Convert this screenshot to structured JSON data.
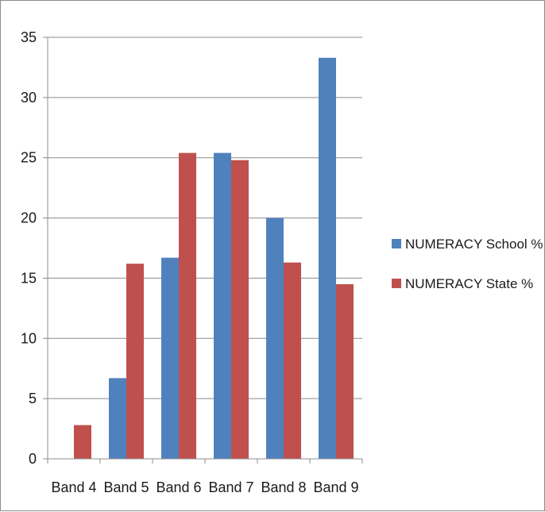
{
  "chart_data": {
    "type": "bar",
    "categories": [
      "Band 4",
      "Band 5",
      "Band 6",
      "Band 7",
      "Band 8",
      "Band 9"
    ],
    "series": [
      {
        "name": "NUMERACY School %",
        "color": "#4F81BD",
        "values": [
          0,
          6.7,
          16.7,
          25.4,
          20.0,
          33.3
        ]
      },
      {
        "name": "NUMERACY State %",
        "color": "#C0504D",
        "values": [
          2.8,
          16.2,
          25.4,
          24.8,
          16.3,
          14.5
        ]
      }
    ],
    "title": "",
    "xlabel": "",
    "ylabel": "",
    "ylim": [
      0,
      35
    ],
    "yticks": [
      "0",
      "5",
      "10",
      "15",
      "20",
      "25",
      "30",
      "35"
    ],
    "grid": true,
    "legend": "right"
  }
}
